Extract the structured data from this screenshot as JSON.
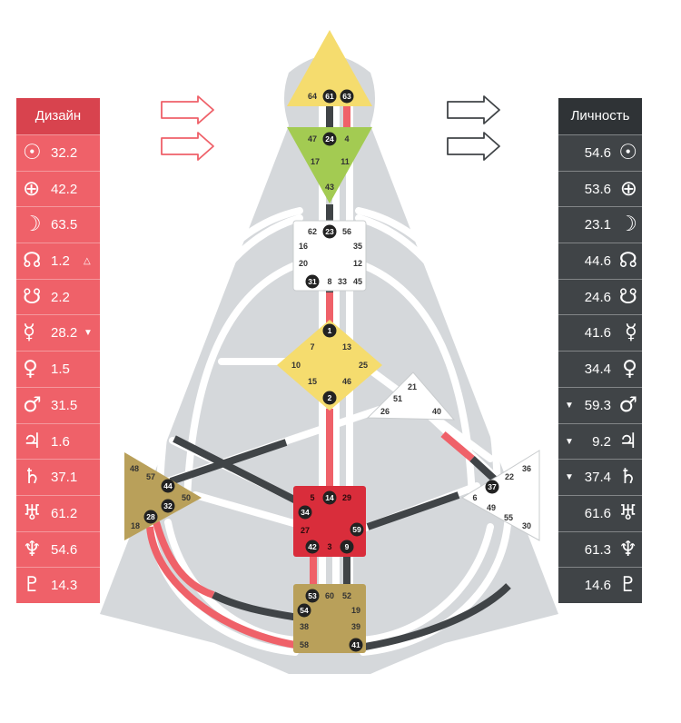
{
  "design_panel": {
    "title": "Дизайн",
    "rows": [
      {
        "planet_icon": "sun-icon",
        "glyph": "☉",
        "value": "32.2",
        "mark": ""
      },
      {
        "planet_icon": "earth-icon",
        "glyph": "⊕",
        "value": "42.2",
        "mark": ""
      },
      {
        "planet_icon": "moon-icon",
        "glyph": "☽",
        "value": "63.5",
        "mark": ""
      },
      {
        "planet_icon": "north-node-icon",
        "glyph": "☊",
        "value": "1.2",
        "mark": "△"
      },
      {
        "planet_icon": "south-node-icon",
        "glyph": "☋",
        "value": "2.2",
        "mark": ""
      },
      {
        "planet_icon": "mercury-icon",
        "glyph": "☿",
        "value": "28.2",
        "mark": "▼"
      },
      {
        "planet_icon": "venus-icon",
        "glyph": "♀",
        "value": "1.5",
        "mark": ""
      },
      {
        "planet_icon": "mars-icon",
        "glyph": "♂",
        "value": "31.5",
        "mark": ""
      },
      {
        "planet_icon": "jupiter-icon",
        "glyph": "♃",
        "value": "1.6",
        "mark": ""
      },
      {
        "planet_icon": "saturn-icon",
        "glyph": "♄",
        "value": "37.1",
        "mark": ""
      },
      {
        "planet_icon": "uranus-icon",
        "glyph": "♅",
        "value": "61.2",
        "mark": ""
      },
      {
        "planet_icon": "neptune-icon",
        "glyph": "♆",
        "value": "54.6",
        "mark": ""
      },
      {
        "planet_icon": "pluto-icon",
        "glyph": "♇",
        "value": "14.3",
        "mark": ""
      }
    ]
  },
  "personality_panel": {
    "title": "Личность",
    "rows": [
      {
        "planet_icon": "sun-icon",
        "glyph": "☉",
        "value": "54.6",
        "mark": ""
      },
      {
        "planet_icon": "earth-icon",
        "glyph": "⊕",
        "value": "53.6",
        "mark": ""
      },
      {
        "planet_icon": "moon-icon",
        "glyph": "☽",
        "value": "23.1",
        "mark": ""
      },
      {
        "planet_icon": "north-node-icon",
        "glyph": "☊",
        "value": "44.6",
        "mark": ""
      },
      {
        "planet_icon": "south-node-icon",
        "glyph": "☋",
        "value": "24.6",
        "mark": ""
      },
      {
        "planet_icon": "mercury-icon",
        "glyph": "☿",
        "value": "41.6",
        "mark": ""
      },
      {
        "planet_icon": "venus-icon",
        "glyph": "♀",
        "value": "34.4",
        "mark": ""
      },
      {
        "planet_icon": "mars-icon",
        "glyph": "♂",
        "value": "59.3",
        "mark": "▼"
      },
      {
        "planet_icon": "jupiter-icon",
        "glyph": "♃",
        "value": "9.2",
        "mark": "▼"
      },
      {
        "planet_icon": "saturn-icon",
        "glyph": "♄",
        "value": "37.4",
        "mark": "▼"
      },
      {
        "planet_icon": "uranus-icon",
        "glyph": "♅",
        "value": "61.6",
        "mark": ""
      },
      {
        "planet_icon": "neptune-icon",
        "glyph": "♆",
        "value": "61.3",
        "mark": ""
      },
      {
        "planet_icon": "pluto-icon",
        "glyph": "♇",
        "value": "14.6",
        "mark": ""
      }
    ]
  },
  "colors": {
    "design": "#ef6169",
    "personality": "#404447",
    "head": "#f5dc6e",
    "ajna": "#a3cb52",
    "g_center": "#f5dc6e",
    "sacral": "#d92d3b",
    "spleen_root": "#b9a05a",
    "silhouette": "#d5d8db"
  },
  "centers": {
    "head": [
      "64",
      "61",
      "63"
    ],
    "ajna": [
      "47",
      "24",
      "4",
      "17",
      "11",
      "43"
    ],
    "throat": [
      "62",
      "23",
      "56",
      "16",
      "35",
      "20",
      "12",
      "31",
      "8",
      "33",
      "45"
    ],
    "g": [
      "1",
      "7",
      "13",
      "10",
      "25",
      "15",
      "46",
      "2"
    ],
    "ego": [
      "21",
      "51",
      "26",
      "40"
    ],
    "spleen": [
      "48",
      "57",
      "44",
      "50",
      "32",
      "28",
      "18"
    ],
    "solar_plexus": [
      "36",
      "22",
      "37",
      "6",
      "49",
      "55",
      "30"
    ],
    "sacral": [
      "5",
      "14",
      "29",
      "34",
      "27",
      "59",
      "42",
      "3",
      "9"
    ],
    "root": [
      "53",
      "60",
      "52",
      "54",
      "19",
      "38",
      "39",
      "58",
      "41"
    ]
  }
}
